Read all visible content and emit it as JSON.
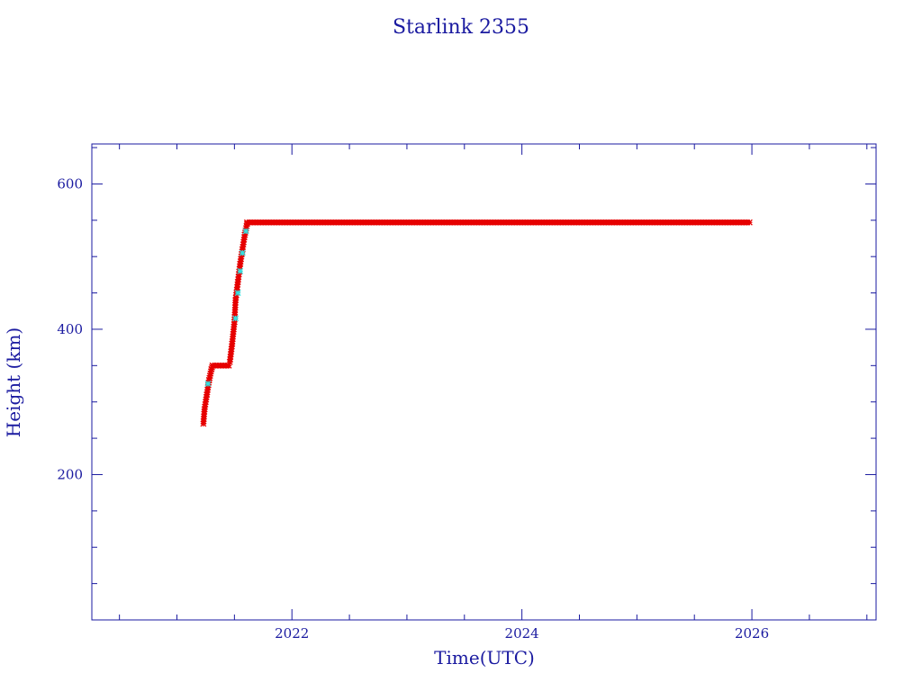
{
  "chart_data": {
    "type": "scatter",
    "title": "Starlink 2355",
    "xlabel": "Time(UTC)",
    "ylabel": "Height (km)",
    "xlim": [
      2020.26,
      2027.08
    ],
    "ylim": [
      0,
      655
    ],
    "x_ticks": [
      {
        "value": 2022,
        "label": "2022"
      },
      {
        "value": 2024,
        "label": "2024"
      },
      {
        "value": 2026,
        "label": "2026"
      }
    ],
    "x_minor_step": 0.5,
    "y_ticks": [
      {
        "value": 200,
        "label": "200"
      },
      {
        "value": 400,
        "label": "400"
      },
      {
        "value": 600,
        "label": "600"
      }
    ],
    "y_minor_step": 50,
    "grid": false,
    "series": [
      {
        "color": "#e60000",
        "marker": "asterisk",
        "segments": [
          {
            "x": [
              2021.23,
              2021.24,
              2021.26,
              2021.28,
              2021.3,
              2021.31
            ],
            "y": [
              270,
              290,
              310,
              330,
              345,
              350
            ]
          },
          {
            "x": [
              2021.31,
              2021.46
            ],
            "y": [
              350,
              350
            ],
            "dense": true
          },
          {
            "x": [
              2021.46,
              2021.48,
              2021.5,
              2021.51,
              2021.53,
              2021.55,
              2021.57,
              2021.59,
              2021.61
            ],
            "y": [
              355,
              380,
              410,
              440,
              465,
              490,
              510,
              530,
              545
            ]
          },
          {
            "x": [
              2021.61,
              2025.98
            ],
            "y": [
              547,
              547
            ],
            "dense": true
          }
        ]
      },
      {
        "color": "#33e0e0",
        "marker": "cross",
        "points": [
          {
            "x": 2021.27,
            "y": 325
          },
          {
            "x": 2021.51,
            "y": 415
          },
          {
            "x": 2021.53,
            "y": 450
          },
          {
            "x": 2021.55,
            "y": 480
          },
          {
            "x": 2021.57,
            "y": 505
          },
          {
            "x": 2021.6,
            "y": 535
          }
        ]
      }
    ]
  }
}
